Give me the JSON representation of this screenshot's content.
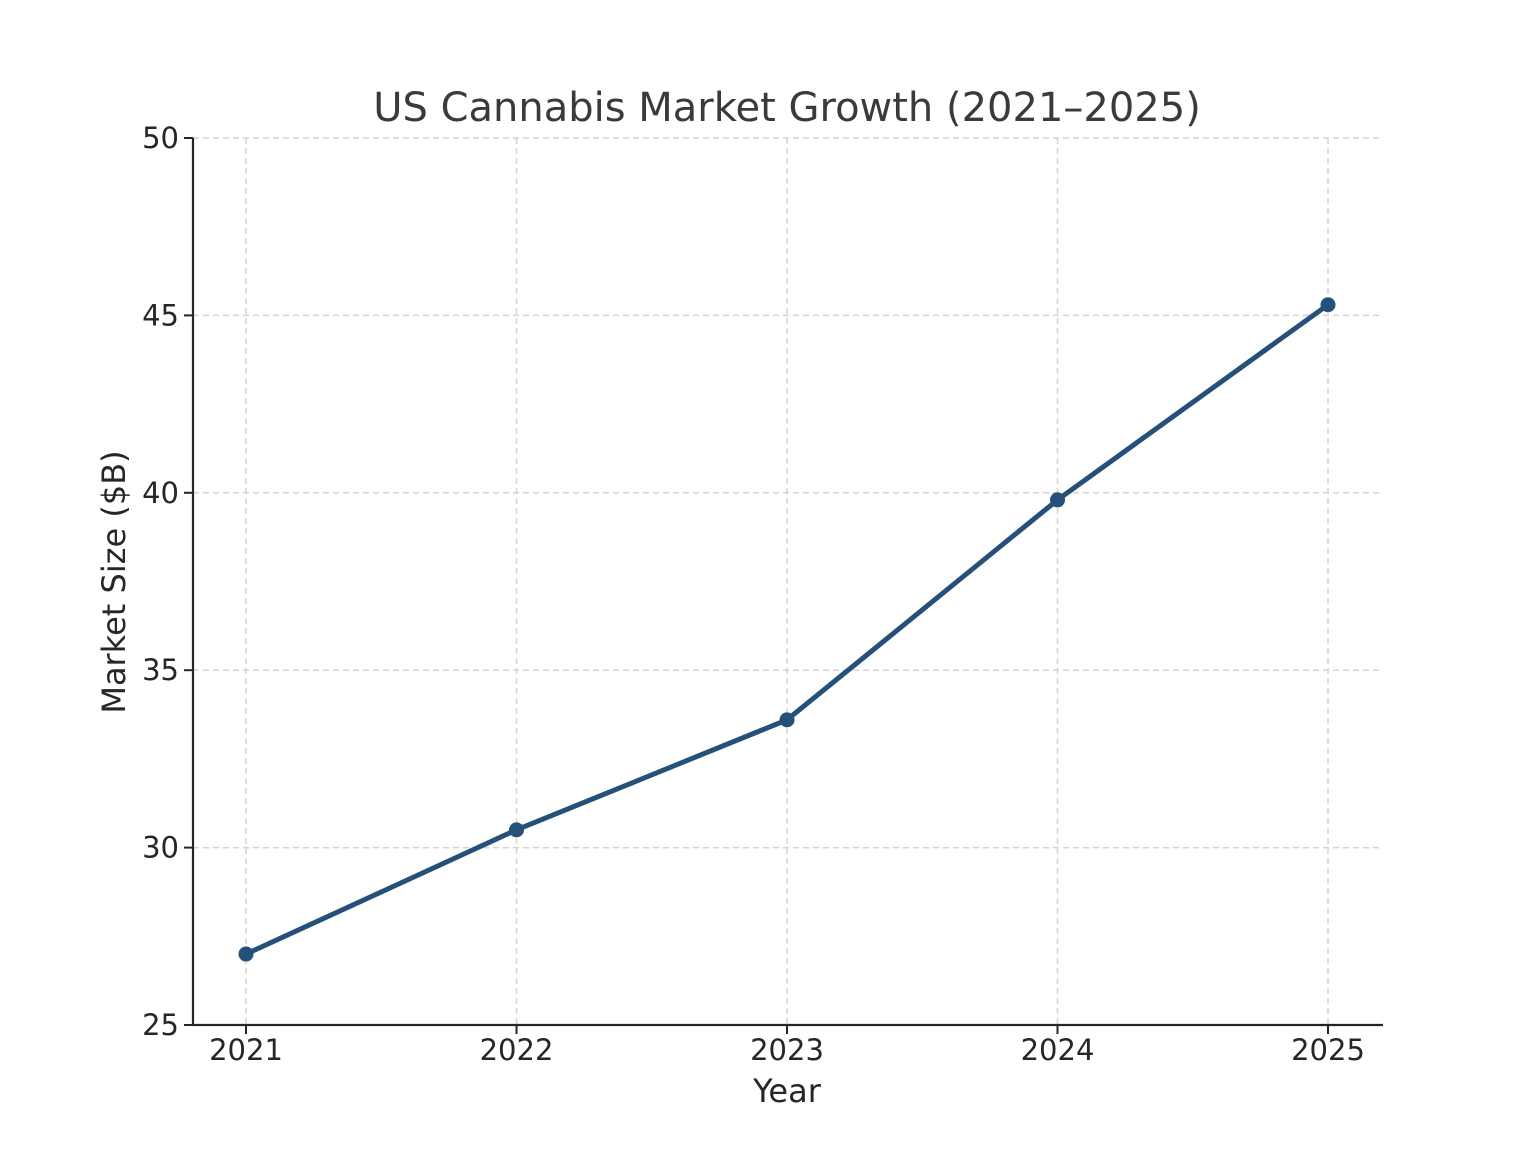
{
  "chart_data": {
    "type": "line",
    "title": "US Cannabis Market Growth (2021–2025)",
    "xlabel": "Year",
    "ylabel": "Market Size ($B)",
    "categories": [
      "2021",
      "2022",
      "2023",
      "2024",
      "2025"
    ],
    "series": [
      {
        "name": "Market Size ($B)",
        "values": [
          27.0,
          30.5,
          33.6,
          39.8,
          45.3
        ],
        "color": "#24507a",
        "marker": "circle"
      }
    ],
    "ylim": [
      25,
      50
    ],
    "yticks": [
      "25",
      "30",
      "35",
      "40",
      "45",
      "50"
    ],
    "grid": true,
    "legend": null
  }
}
